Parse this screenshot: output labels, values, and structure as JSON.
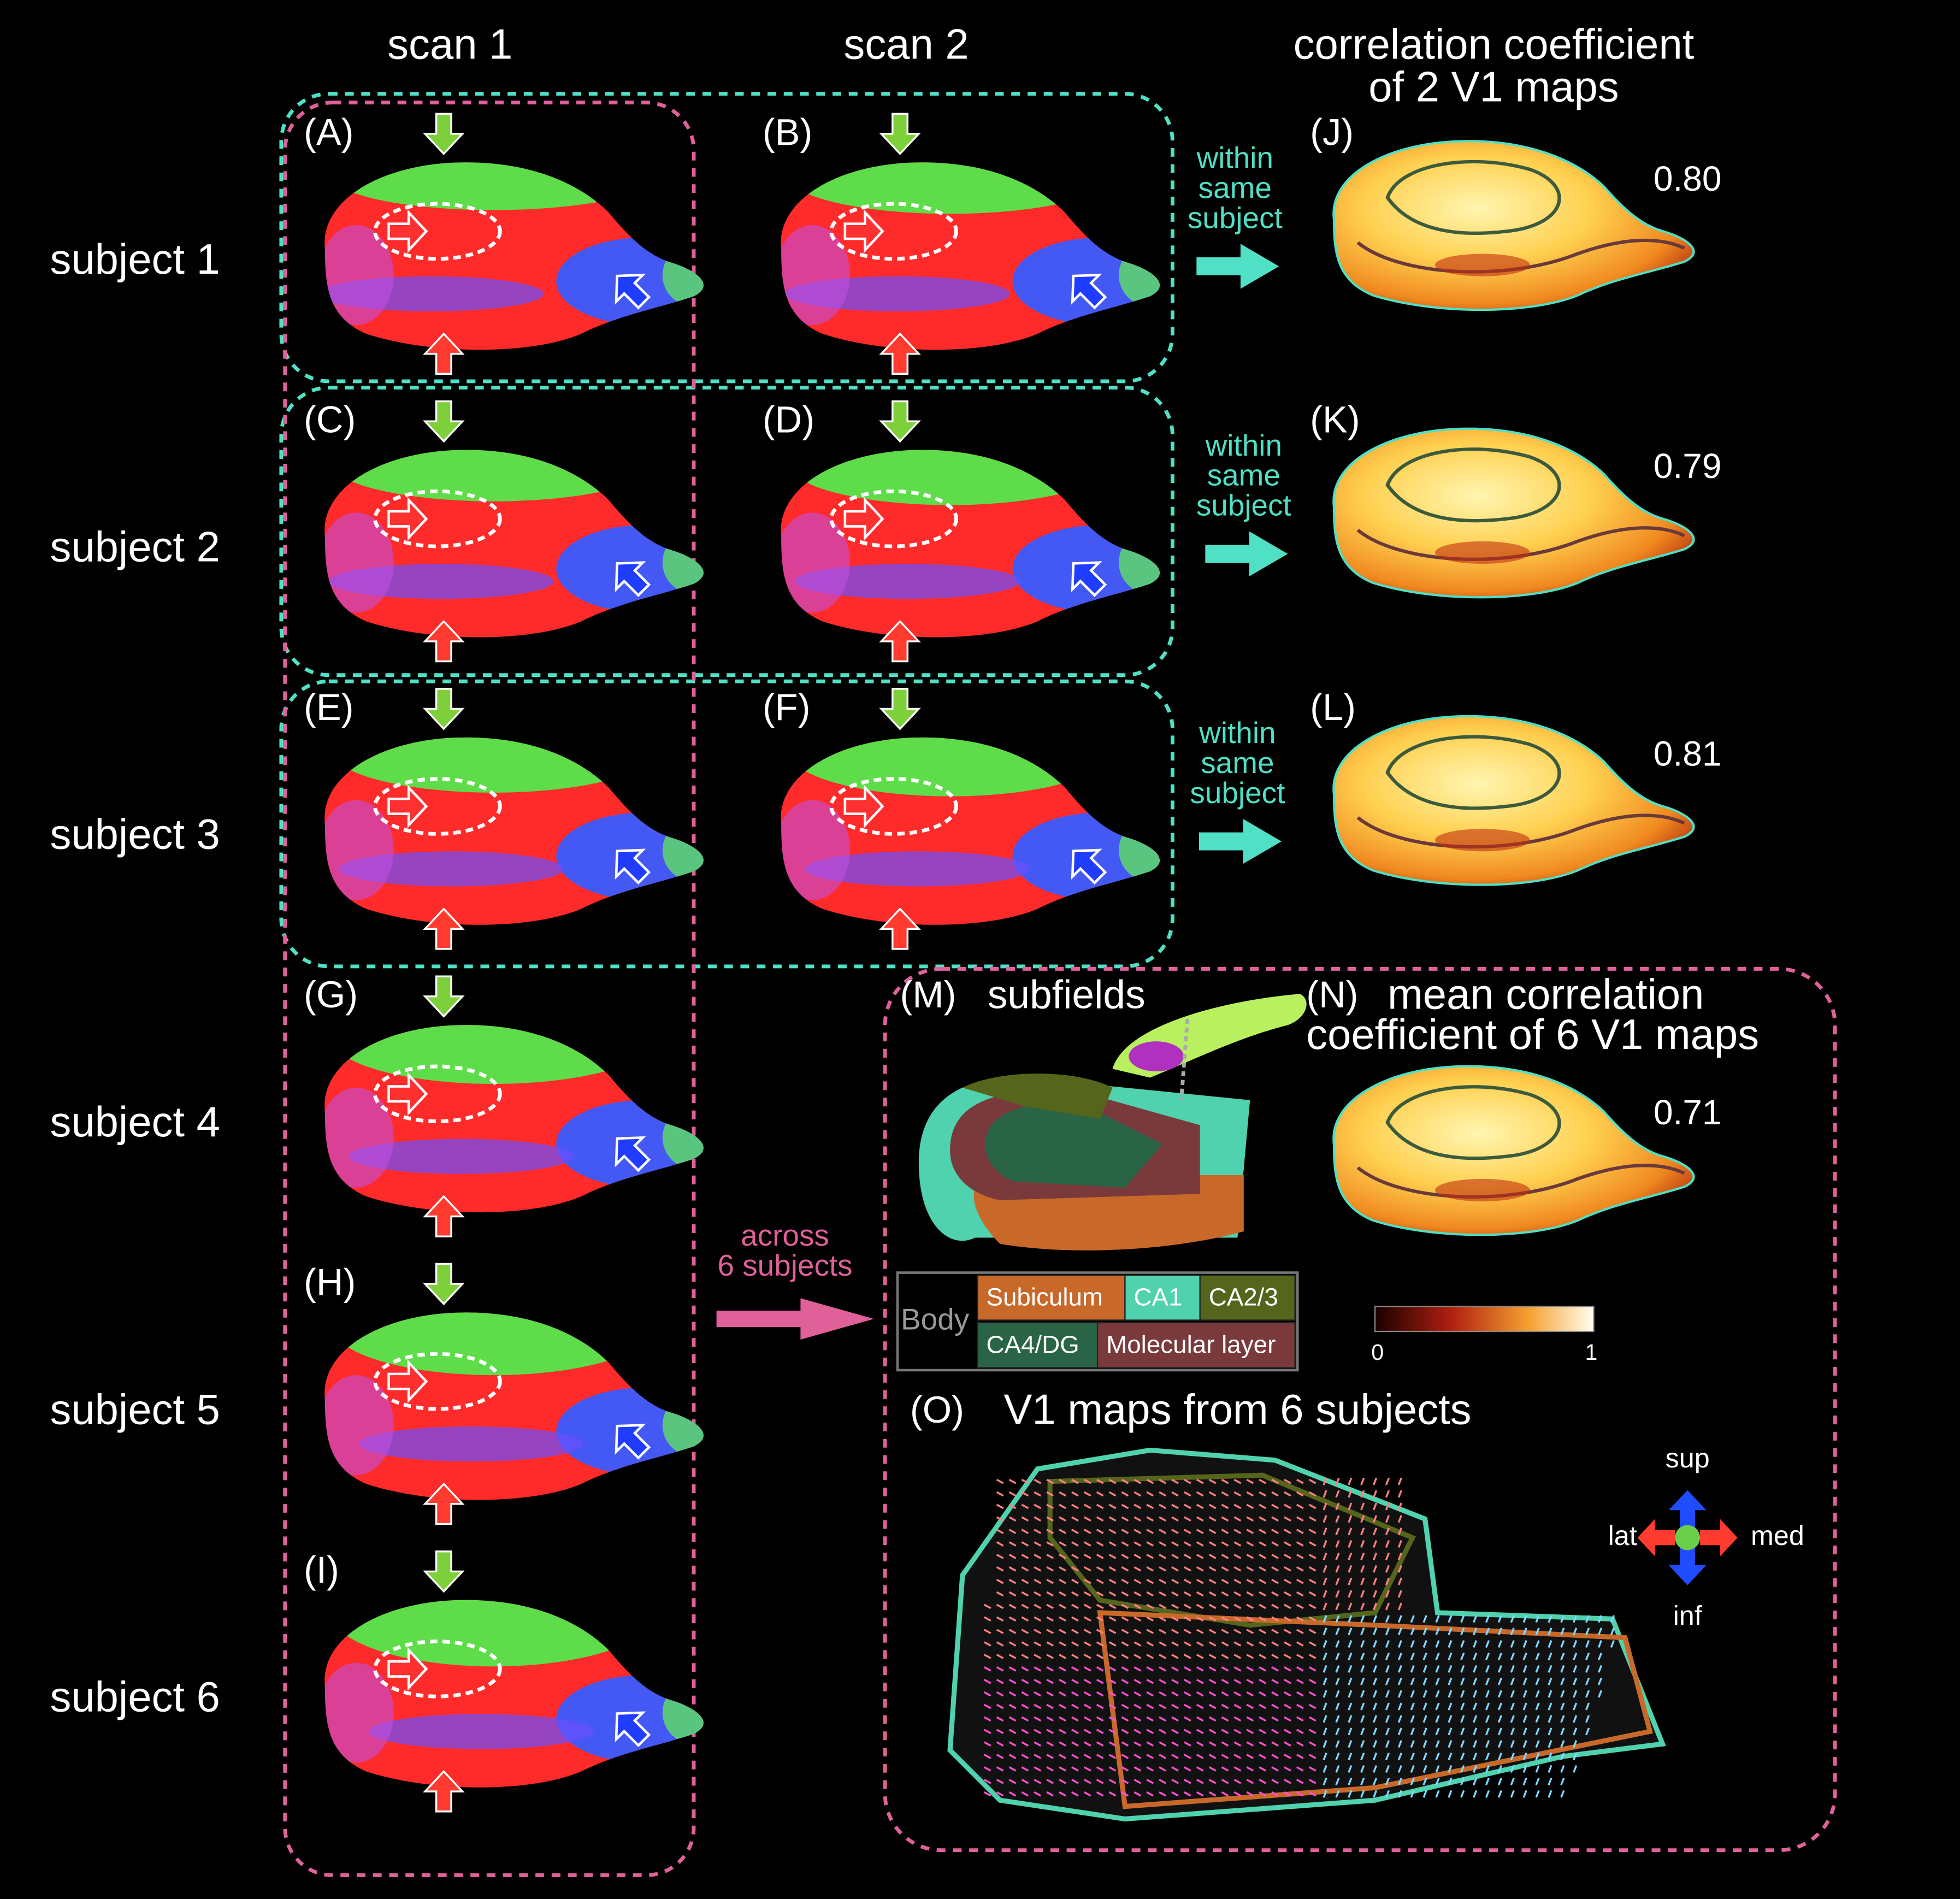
{
  "columns": [
    "scan 1",
    "scan 2"
  ],
  "correlation_header": [
    "correlation coefficient",
    "of 2 V1 maps"
  ],
  "subjects": [
    {
      "label": "subject 1",
      "scan1_panel": "(A)",
      "scan2_panel": "(B)"
    },
    {
      "label": "subject 2",
      "scan1_panel": "(C)",
      "scan2_panel": "(D)"
    },
    {
      "label": "subject 3",
      "scan1_panel": "(E)",
      "scan2_panel": "(F)"
    },
    {
      "label": "subject 4",
      "scan1_panel": "(G)"
    },
    {
      "label": "subject 5",
      "scan1_panel": "(H)"
    },
    {
      "label": "subject 6",
      "scan1_panel": "(I)"
    }
  ],
  "within": [
    {
      "lines": [
        "within",
        "same",
        "subject"
      ],
      "panel": "(J)",
      "value": "0.80"
    },
    {
      "lines": [
        "within",
        "same",
        "subject"
      ],
      "panel": "(K)",
      "value": "0.79"
    },
    {
      "lines": [
        "within",
        "same",
        "subject"
      ],
      "panel": "(L)",
      "value": "0.81"
    }
  ],
  "across": [
    "across",
    "6 subjects"
  ],
  "subfields": {
    "panel": "(M)",
    "title": "subfields",
    "legend_group": "Body",
    "legend": [
      {
        "name": "Subiculum",
        "color": "#c8692a"
      },
      {
        "name": "CA1",
        "color": "#4fd2ad"
      },
      {
        "name": "CA2/3",
        "color": "#55651c"
      },
      {
        "name": "CA4/DG",
        "color": "#2a6446"
      },
      {
        "name": "Molecular layer",
        "color": "#7a3a3c"
      }
    ]
  },
  "mean": {
    "panel": "(N)",
    "title": [
      "mean correlation",
      "coefficient of 6 V1 maps"
    ],
    "value": "0.71",
    "colorbar": {
      "min": "0",
      "max": "1"
    }
  },
  "vectors": {
    "panel": "(O)",
    "title": "V1 maps from 6 subjects",
    "directions": {
      "up": "sup",
      "down": "inf",
      "left": "lat",
      "right": "med"
    }
  }
}
